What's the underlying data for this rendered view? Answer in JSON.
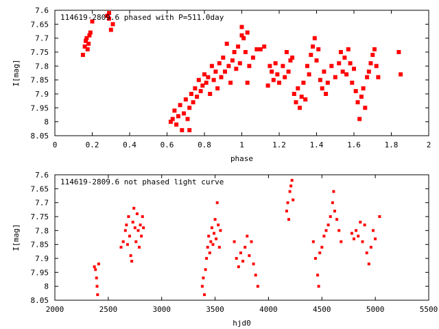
{
  "chart_data": [
    {
      "type": "scatter",
      "title": "114619-2809.6 phased with P=511.0day",
      "xlabel": "phase",
      "ylabel": "I[mag]",
      "xlim": [
        0,
        2
      ],
      "ylim": [
        8.05,
        7.6
      ],
      "y_inverted": true,
      "xticks": [
        0,
        0.2,
        0.4,
        0.6,
        0.8,
        1,
        1.2,
        1.4,
        1.6,
        1.8,
        2
      ],
      "xtick_labels": [
        "0",
        "0.2",
        "0.4",
        "0.6",
        "0.8",
        "1",
        "1.2",
        "1.4",
        "1.6",
        "1.8",
        "2"
      ],
      "yticks": [
        7.6,
        7.65,
        7.7,
        7.75,
        7.8,
        7.85,
        7.9,
        7.95,
        8,
        8.05
      ],
      "ytick_labels": [
        "7.6",
        "7.65",
        "7.7",
        "7.75",
        "7.8",
        "7.85",
        "7.9",
        "7.95",
        "8",
        "8.05"
      ],
      "grid": false,
      "marker_color": "#ff0000",
      "points": [
        [
          0.15,
          7.76
        ],
        [
          0.16,
          7.73
        ],
        [
          0.165,
          7.71
        ],
        [
          0.17,
          7.7
        ],
        [
          0.175,
          7.74
        ],
        [
          0.18,
          7.72
        ],
        [
          0.185,
          7.69
        ],
        [
          0.19,
          7.68
        ],
        [
          0.2,
          7.64
        ],
        [
          0.28,
          7.62
        ],
        [
          0.29,
          7.63
        ],
        [
          0.3,
          7.67
        ],
        [
          0.31,
          7.65
        ],
        [
          0.29,
          7.61
        ],
        [
          0.62,
          8.0
        ],
        [
          0.63,
          7.99
        ],
        [
          0.64,
          7.96
        ],
        [
          0.65,
          8.01
        ],
        [
          0.66,
          7.98
        ],
        [
          0.67,
          7.94
        ],
        [
          0.68,
          8.03
        ],
        [
          0.69,
          7.97
        ],
        [
          0.7,
          7.92
        ],
        [
          0.71,
          7.99
        ],
        [
          0.72,
          7.95
        ],
        [
          0.72,
          8.03
        ],
        [
          0.73,
          7.9
        ],
        [
          0.74,
          7.93
        ],
        [
          0.75,
          7.88
        ],
        [
          0.76,
          7.91
        ],
        [
          0.77,
          7.85
        ],
        [
          0.78,
          7.89
        ],
        [
          0.79,
          7.87
        ],
        [
          0.8,
          7.83
        ],
        [
          0.81,
          7.86
        ],
        [
          0.82,
          7.84
        ],
        [
          0.83,
          7.9
        ],
        [
          0.84,
          7.8
        ],
        [
          0.85,
          7.85
        ],
        [
          0.86,
          7.82
        ],
        [
          0.87,
          7.88
        ],
        [
          0.88,
          7.79
        ],
        [
          0.89,
          7.84
        ],
        [
          0.9,
          7.77
        ],
        [
          0.91,
          7.82
        ],
        [
          0.92,
          7.72
        ],
        [
          0.93,
          7.8
        ],
        [
          0.94,
          7.86
        ],
        [
          0.95,
          7.78
        ],
        [
          0.96,
          7.75
        ],
        [
          0.97,
          7.81
        ],
        [
          0.98,
          7.73
        ],
        [
          0.99,
          7.79
        ],
        [
          1.0,
          7.66
        ],
        [
          1.0,
          7.69
        ],
        [
          1.01,
          7.7
        ],
        [
          1.02,
          7.75
        ],
        [
          1.03,
          7.68
        ],
        [
          1.04,
          7.8
        ],
        [
          1.03,
          7.86
        ],
        [
          1.06,
          7.77
        ],
        [
          1.08,
          7.74
        ],
        [
          1.1,
          7.74
        ],
        [
          1.12,
          7.73
        ],
        [
          1.14,
          7.87
        ],
        [
          1.15,
          7.8
        ],
        [
          1.16,
          7.82
        ],
        [
          1.17,
          7.85
        ],
        [
          1.18,
          7.79
        ],
        [
          1.19,
          7.83
        ],
        [
          1.2,
          7.86
        ],
        [
          1.22,
          7.8
        ],
        [
          1.23,
          7.84
        ],
        [
          1.24,
          7.75
        ],
        [
          1.25,
          7.82
        ],
        [
          1.26,
          7.78
        ],
        [
          1.27,
          7.77
        ],
        [
          1.28,
          7.9
        ],
        [
          1.29,
          7.93
        ],
        [
          1.3,
          7.88
        ],
        [
          1.31,
          7.95
        ],
        [
          1.32,
          7.91
        ],
        [
          1.33,
          7.86
        ],
        [
          1.34,
          7.92
        ],
        [
          1.35,
          7.8
        ],
        [
          1.36,
          7.83
        ],
        [
          1.37,
          7.76
        ],
        [
          1.38,
          7.73
        ],
        [
          1.39,
          7.7
        ],
        [
          1.4,
          7.78
        ],
        [
          1.41,
          7.74
        ],
        [
          1.42,
          7.85
        ],
        [
          1.43,
          7.88
        ],
        [
          1.44,
          7.82
        ],
        [
          1.45,
          7.9
        ],
        [
          1.46,
          7.86
        ],
        [
          1.48,
          7.8
        ],
        [
          1.5,
          7.84
        ],
        [
          1.52,
          7.79
        ],
        [
          1.53,
          7.75
        ],
        [
          1.54,
          7.82
        ],
        [
          1.55,
          7.77
        ],
        [
          1.56,
          7.83
        ],
        [
          1.57,
          7.74
        ],
        [
          1.58,
          7.79
        ],
        [
          1.59,
          7.86
        ],
        [
          1.6,
          7.81
        ],
        [
          1.61,
          7.89
        ],
        [
          1.62,
          7.93
        ],
        [
          1.63,
          7.99
        ],
        [
          1.64,
          7.91
        ],
        [
          1.65,
          7.88
        ],
        [
          1.66,
          7.95
        ],
        [
          1.67,
          7.84
        ],
        [
          1.68,
          7.82
        ],
        [
          1.69,
          7.79
        ],
        [
          1.7,
          7.76
        ],
        [
          1.71,
          7.74
        ],
        [
          1.72,
          7.8
        ],
        [
          1.73,
          7.84
        ],
        [
          1.84,
          7.75
        ],
        [
          1.85,
          7.83
        ]
      ]
    },
    {
      "type": "scatter",
      "title": "114619-2809.6 not phased light curve",
      "xlabel": "hjd0",
      "ylabel": "I[mag]",
      "xlim": [
        2000,
        5500
      ],
      "ylim": [
        8.05,
        7.6
      ],
      "y_inverted": true,
      "xticks": [
        2000,
        2500,
        3000,
        3500,
        4000,
        4500,
        5000,
        5500
      ],
      "xtick_labels": [
        "2000",
        "2500",
        "3000",
        "3500",
        "4000",
        "4500",
        "5000",
        "5500"
      ],
      "yticks": [
        7.6,
        7.65,
        7.7,
        7.75,
        7.8,
        7.85,
        7.9,
        7.95,
        8,
        8.05
      ],
      "ytick_labels": [
        "7.6",
        "7.65",
        "7.7",
        "7.75",
        "7.8",
        "7.85",
        "7.9",
        "7.95",
        "8",
        "8.05"
      ],
      "grid": false,
      "marker_color": "#ff0000",
      "points": [
        [
          2370,
          7.93
        ],
        [
          2380,
          7.94
        ],
        [
          2390,
          7.97
        ],
        [
          2395,
          8.0
        ],
        [
          2400,
          8.03
        ],
        [
          2410,
          7.92
        ],
        [
          2620,
          7.86
        ],
        [
          2640,
          7.84
        ],
        [
          2660,
          7.8
        ],
        [
          2670,
          7.78
        ],
        [
          2680,
          7.85
        ],
        [
          2690,
          7.75
        ],
        [
          2700,
          7.82
        ],
        [
          2710,
          7.89
        ],
        [
          2720,
          7.91
        ],
        [
          2730,
          7.77
        ],
        [
          2740,
          7.72
        ],
        [
          2750,
          7.79
        ],
        [
          2760,
          7.84
        ],
        [
          2770,
          7.74
        ],
        [
          2780,
          7.8
        ],
        [
          2790,
          7.86
        ],
        [
          2800,
          7.78
        ],
        [
          2810,
          7.82
        ],
        [
          2820,
          7.75
        ],
        [
          2830,
          7.79
        ],
        [
          3380,
          8.0
        ],
        [
          3390,
          7.97
        ],
        [
          3400,
          8.03
        ],
        [
          3410,
          7.94
        ],
        [
          3420,
          7.9
        ],
        [
          3430,
          7.86
        ],
        [
          3440,
          7.82
        ],
        [
          3450,
          7.88
        ],
        [
          3460,
          7.84
        ],
        [
          3470,
          7.79
        ],
        [
          3480,
          7.85
        ],
        [
          3490,
          7.81
        ],
        [
          3500,
          7.76
        ],
        [
          3510,
          7.83
        ],
        [
          3520,
          7.7
        ],
        [
          3530,
          7.78
        ],
        [
          3540,
          7.86
        ],
        [
          3550,
          7.8
        ],
        [
          3680,
          7.84
        ],
        [
          3700,
          7.9
        ],
        [
          3720,
          7.93
        ],
        [
          3740,
          7.88
        ],
        [
          3760,
          7.91
        ],
        [
          3780,
          7.86
        ],
        [
          3800,
          7.82
        ],
        [
          3820,
          7.89
        ],
        [
          3840,
          7.84
        ],
        [
          3860,
          7.92
        ],
        [
          3880,
          7.96
        ],
        [
          3900,
          8.0
        ],
        [
          4170,
          7.73
        ],
        [
          4180,
          7.7
        ],
        [
          4190,
          7.76
        ],
        [
          4200,
          7.66
        ],
        [
          4210,
          7.64
        ],
        [
          4220,
          7.62
        ],
        [
          4230,
          7.69
        ],
        [
          4420,
          7.84
        ],
        [
          4440,
          7.9
        ],
        [
          4460,
          7.96
        ],
        [
          4470,
          8.0
        ],
        [
          4480,
          7.88
        ],
        [
          4500,
          7.86
        ],
        [
          4520,
          7.82
        ],
        [
          4540,
          7.8
        ],
        [
          4560,
          7.78
        ],
        [
          4580,
          7.75
        ],
        [
          4600,
          7.7
        ],
        [
          4610,
          7.66
        ],
        [
          4620,
          7.73
        ],
        [
          4640,
          7.76
        ],
        [
          4660,
          7.8
        ],
        [
          4680,
          7.84
        ],
        [
          4780,
          7.81
        ],
        [
          4800,
          7.83
        ],
        [
          4820,
          7.8
        ],
        [
          4840,
          7.82
        ],
        [
          4860,
          7.77
        ],
        [
          4880,
          7.84
        ],
        [
          4900,
          7.78
        ],
        [
          4920,
          7.88
        ],
        [
          4940,
          7.92
        ],
        [
          4960,
          7.86
        ],
        [
          4980,
          7.8
        ],
        [
          5000,
          7.83
        ],
        [
          5040,
          7.75
        ]
      ]
    }
  ]
}
